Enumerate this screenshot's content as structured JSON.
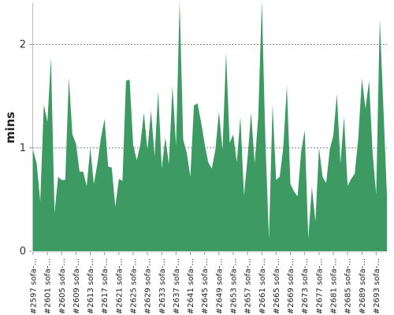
{
  "chart_data": {
    "type": "area",
    "ylabel": "mins",
    "xlabel": "",
    "title": "",
    "ylim": [
      0,
      2.4
    ],
    "yticks": [
      0,
      1,
      2
    ],
    "grid": "horizontal-dashed",
    "color": "#3d9a62",
    "x_tick_labels": [
      "#2597 sofa-...",
      "#2601 sofa-...",
      "#2605 sofa-...",
      "#2609 sofa-...",
      "#2613 sofa-...",
      "#2617 sofa-...",
      "#2621 sofa-...",
      "#2625 sofa-...",
      "#2629 sofa-...",
      "#2633 sofa-...",
      "#2637 sofa-...",
      "#2641 sofa-...",
      "#2645 sofa-...",
      "#2649 sofa-...",
      "#2653 sofa-...",
      "#2657 sofa-...",
      "#2661 sofa-...",
      "#2665 sofa-...",
      "#2669 sofa-...",
      "#2673 sofa-...",
      "#2677 sofa-...",
      "#2681 sofa-...",
      "#2685 sofa-...",
      "#2689 sofa-...",
      "#2693 sofa-..."
    ],
    "x_tick_every": 4,
    "values": [
      0.98,
      0.85,
      0.48,
      1.42,
      1.25,
      1.87,
      0.37,
      0.72,
      0.69,
      0.69,
      1.68,
      1.13,
      1.04,
      0.77,
      0.77,
      0.63,
      1.0,
      0.65,
      0.85,
      1.1,
      1.28,
      0.82,
      0.81,
      0.43,
      0.7,
      0.68,
      1.65,
      1.66,
      1.03,
      0.88,
      1.03,
      1.34,
      0.98,
      1.36,
      0.92,
      1.55,
      0.8,
      1.1,
      0.84,
      1.6,
      1.02,
      2.42,
      1.08,
      0.95,
      0.72,
      1.41,
      1.43,
      1.25,
      1.04,
      0.86,
      0.8,
      0.98,
      1.35,
      0.98,
      1.92,
      1.05,
      1.13,
      0.86,
      1.3,
      0.54,
      0.9,
      1.34,
      0.85,
      1.3,
      2.42,
      1.06,
      0.12,
      1.42,
      0.69,
      0.72,
      1.0,
      1.6,
      0.65,
      0.58,
      0.53,
      0.96,
      1.17,
      0.12,
      0.62,
      0.29,
      1.0,
      0.72,
      0.66,
      0.98,
      1.12,
      1.52,
      0.85,
      1.3,
      0.63,
      0.7,
      0.75,
      1.1,
      1.67,
      1.38,
      1.65,
      0.95,
      0.55,
      2.25,
      1.4,
      0.54
    ]
  }
}
